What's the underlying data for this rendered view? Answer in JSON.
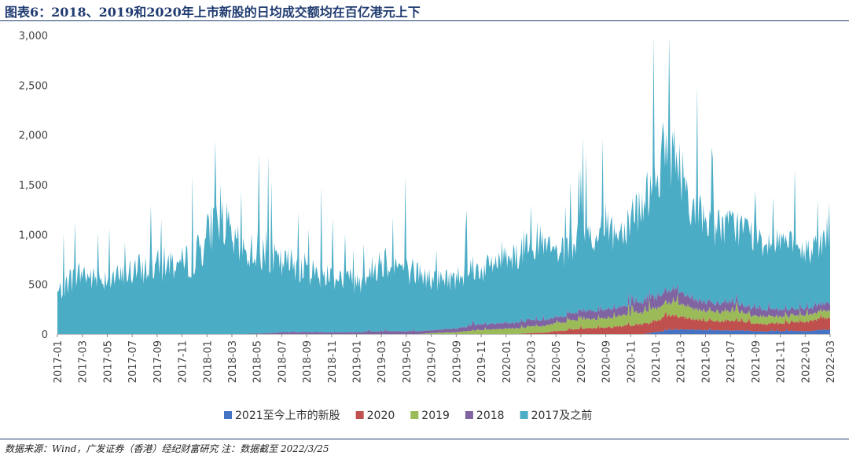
{
  "title": "图表6：2018、2019和2020年上市新股的日均成交额均在百亿港元上下",
  "source": "数据来源：Wind，广发证券（香港）经纪财富研究 注：数据截至 2022/3/25",
  "chart_data": {
    "type": "area",
    "stacked": true,
    "title": "图表6：2018、2019和2020年上市新股的日均成交额均在百亿港元上下",
    "xlabel": "",
    "ylabel": "",
    "ylim": [
      0,
      3000
    ],
    "y_ticks": [
      "0",
      "500",
      "1,000",
      "1,500",
      "2,000",
      "2,500",
      "3,000"
    ],
    "y_tick_values": [
      0,
      500,
      1000,
      1500,
      2000,
      2500,
      3000
    ],
    "x_ticks": [
      "2017-01",
      "2017-03",
      "2017-05",
      "2017-07",
      "2017-09",
      "2017-11",
      "2018-01",
      "2018-03",
      "2018-05",
      "2018-07",
      "2018-09",
      "2018-11",
      "2019-01",
      "2019-03",
      "2019-05",
      "2019-07",
      "2019-09",
      "2019-11",
      "2020-01",
      "2020-03",
      "2020-05",
      "2020-07",
      "2020-09",
      "2020-11",
      "2021-01",
      "2021-03",
      "2021-05",
      "2021-07",
      "2021-09",
      "2021-11",
      "2022-01",
      "2022-03"
    ],
    "x_months": [
      "2017-01",
      "2017-02",
      "2017-03",
      "2017-04",
      "2017-05",
      "2017-06",
      "2017-07",
      "2017-08",
      "2017-09",
      "2017-10",
      "2017-11",
      "2017-12",
      "2018-01",
      "2018-02",
      "2018-03",
      "2018-04",
      "2018-05",
      "2018-06",
      "2018-07",
      "2018-08",
      "2018-09",
      "2018-10",
      "2018-11",
      "2018-12",
      "2019-01",
      "2019-02",
      "2019-03",
      "2019-04",
      "2019-05",
      "2019-06",
      "2019-07",
      "2019-08",
      "2019-09",
      "2019-10",
      "2019-11",
      "2019-12",
      "2020-01",
      "2020-02",
      "2020-03",
      "2020-04",
      "2020-05",
      "2020-06",
      "2020-07",
      "2020-08",
      "2020-09",
      "2020-10",
      "2020-11",
      "2020-12",
      "2021-01",
      "2021-02",
      "2021-03",
      "2021-04",
      "2021-05",
      "2021-06",
      "2021-07",
      "2021-08",
      "2021-09",
      "2021-10",
      "2021-11",
      "2021-12",
      "2022-01",
      "2022-02",
      "2022-03"
    ],
    "legend_position": "bottom",
    "series": [
      {
        "name": "2021至今上市的新股",
        "color": "#4472c4",
        "values": [
          0,
          0,
          0,
          0,
          0,
          0,
          0,
          0,
          0,
          0,
          0,
          0,
          0,
          0,
          0,
          0,
          0,
          0,
          0,
          0,
          0,
          0,
          0,
          0,
          0,
          0,
          0,
          0,
          0,
          0,
          0,
          0,
          0,
          0,
          0,
          0,
          0,
          0,
          0,
          0,
          0,
          0,
          0,
          0,
          0,
          0,
          0,
          0,
          20,
          40,
          50,
          45,
          40,
          40,
          40,
          35,
          30,
          30,
          30,
          30,
          30,
          40,
          50
        ]
      },
      {
        "name": "2020",
        "color": "#c0504d",
        "values": [
          0,
          0,
          0,
          0,
          0,
          0,
          0,
          0,
          0,
          0,
          0,
          0,
          0,
          0,
          0,
          0,
          0,
          0,
          0,
          0,
          0,
          0,
          0,
          0,
          0,
          0,
          0,
          0,
          0,
          0,
          0,
          0,
          0,
          0,
          0,
          0,
          0,
          0,
          10,
          15,
          30,
          40,
          60,
          60,
          70,
          80,
          90,
          100,
          120,
          150,
          140,
          110,
          100,
          100,
          100,
          90,
          80,
          80,
          80,
          90,
          100,
          110,
          130
        ]
      },
      {
        "name": "2019",
        "color": "#9bbb59",
        "values": [
          0,
          0,
          0,
          0,
          0,
          0,
          0,
          0,
          0,
          0,
          0,
          0,
          0,
          0,
          0,
          0,
          0,
          0,
          0,
          0,
          0,
          0,
          0,
          0,
          0,
          0,
          0,
          0,
          0,
          0,
          10,
          15,
          20,
          30,
          40,
          50,
          60,
          60,
          70,
          70,
          80,
          90,
          100,
          100,
          100,
          110,
          120,
          130,
          130,
          140,
          130,
          110,
          100,
          100,
          100,
          90,
          80,
          80,
          70,
          70,
          70,
          70,
          80
        ]
      },
      {
        "name": "2018",
        "color": "#8064a2",
        "values": [
          0,
          0,
          0,
          0,
          0,
          0,
          0,
          0,
          0,
          0,
          0,
          0,
          0,
          0,
          0,
          0,
          5,
          10,
          20,
          20,
          20,
          20,
          20,
          20,
          20,
          25,
          30,
          30,
          30,
          30,
          30,
          35,
          40,
          50,
          60,
          60,
          60,
          60,
          70,
          60,
          60,
          70,
          80,
          80,
          90,
          90,
          100,
          110,
          120,
          130,
          120,
          100,
          100,
          90,
          90,
          80,
          80,
          70,
          70,
          70,
          70,
          70,
          80
        ]
      },
      {
        "name": "2017及之前",
        "color": "#4bacc6",
        "values": [
          420,
          560,
          640,
          560,
          600,
          580,
          650,
          680,
          700,
          750,
          720,
          800,
          1000,
          1300,
          950,
          850,
          880,
          780,
          700,
          720,
          650,
          600,
          600,
          560,
          520,
          600,
          740,
          700,
          640,
          600,
          520,
          520,
          520,
          600,
          560,
          620,
          730,
          700,
          880,
          760,
          660,
          650,
          800,
          760,
          880,
          760,
          920,
          1020,
          1260,
          1500,
          1260,
          950,
          850,
          800,
          780,
          800,
          760,
          700,
          760,
          620,
          580,
          600,
          750
        ]
      }
    ]
  }
}
